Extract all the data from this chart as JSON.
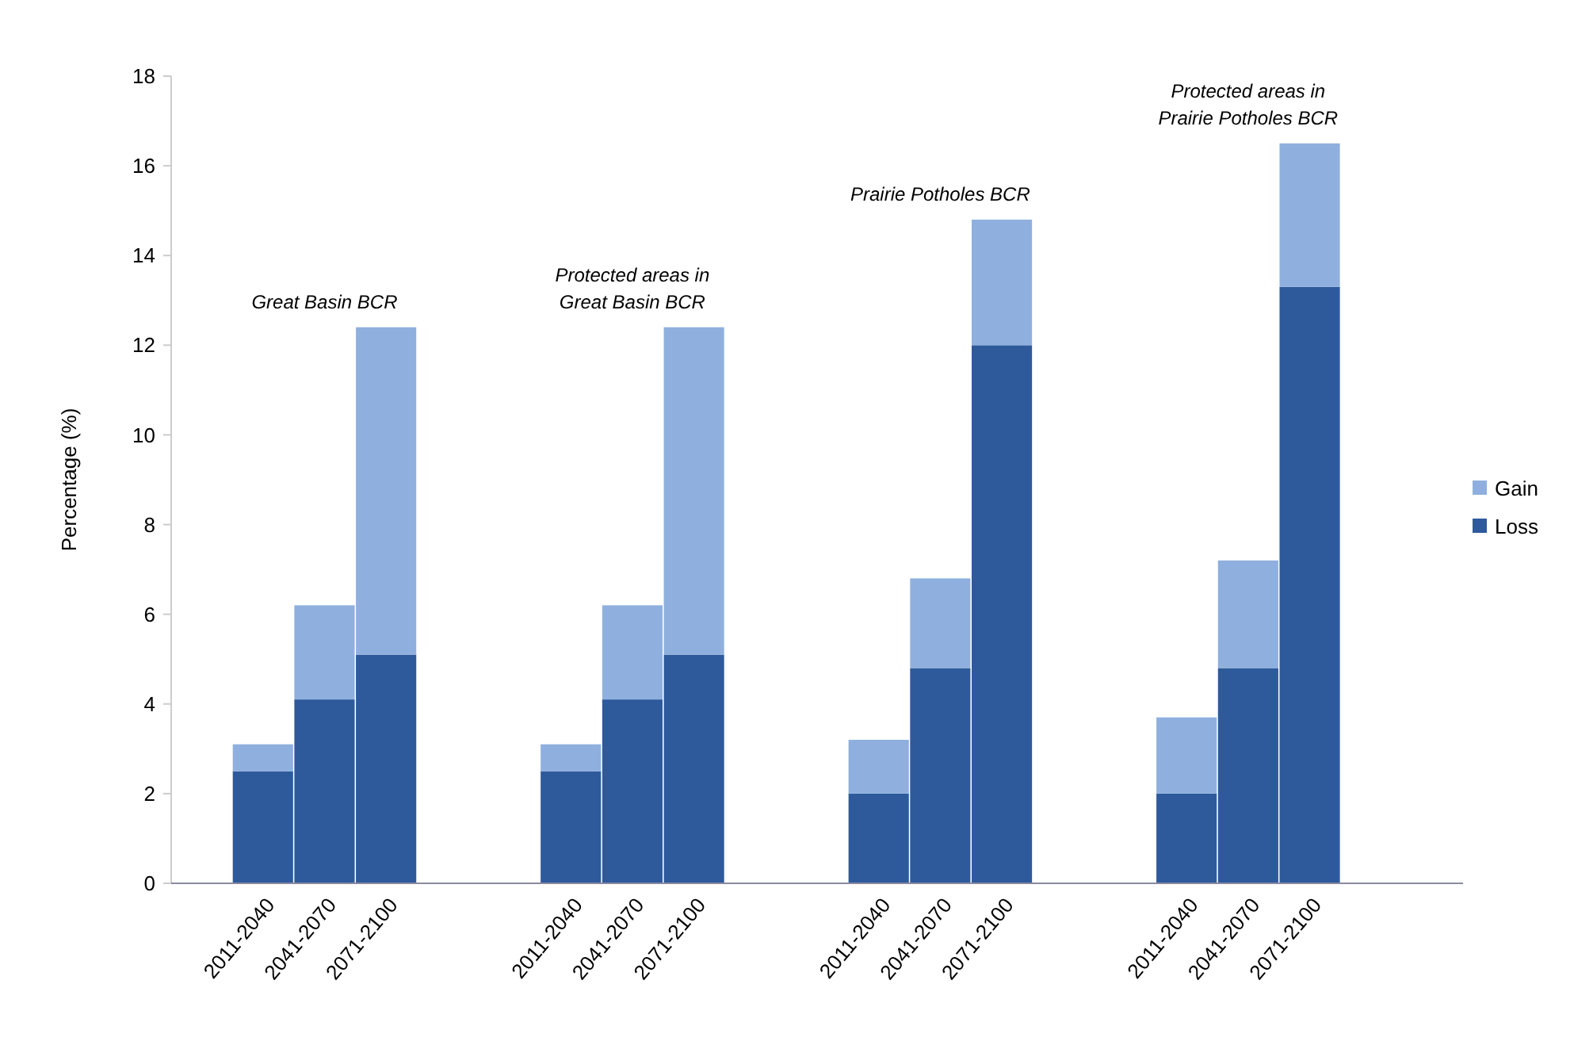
{
  "chart_data": {
    "type": "bar",
    "stacked": true,
    "ylabel": "Percentage (%)",
    "categories": [
      null,
      "2011-2040",
      "2041-2070",
      "2071-2100",
      null,
      null,
      "2011-2040",
      "2041-2070",
      "2071-2100",
      null,
      null,
      "2011-2040",
      "2041-2070",
      "2071-2100",
      null,
      null,
      "2011-2040",
      "2041-2070",
      "2071-2100",
      null,
      null
    ],
    "series": [
      {
        "name": "Loss",
        "color": "#2e5a9c",
        "values": [
          null,
          2.5,
          4.1,
          5.1,
          null,
          null,
          2.5,
          4.1,
          5.1,
          null,
          null,
          2.0,
          4.8,
          12.0,
          null,
          null,
          2.0,
          4.8,
          13.3,
          null,
          null
        ]
      },
      {
        "name": "Gain",
        "color": "#8fb0de",
        "values": [
          null,
          0.6,
          2.1,
          7.3,
          null,
          null,
          0.6,
          2.1,
          7.3,
          null,
          null,
          1.2,
          2.0,
          2.8,
          null,
          null,
          1.7,
          2.4,
          3.2,
          null,
          null
        ]
      }
    ],
    "ylim": [
      0,
      18
    ],
    "yticks": [
      0,
      2,
      4,
      6,
      8,
      10,
      12,
      14,
      16,
      18
    ],
    "grid": false,
    "legend": "right",
    "annotations": [
      "Great Basin BCR",
      "Protected areas in\nGreat Basin BCR",
      "Prairie Potholes BCR",
      "Protected areas in\nPrairie Potholes BCR"
    ]
  }
}
